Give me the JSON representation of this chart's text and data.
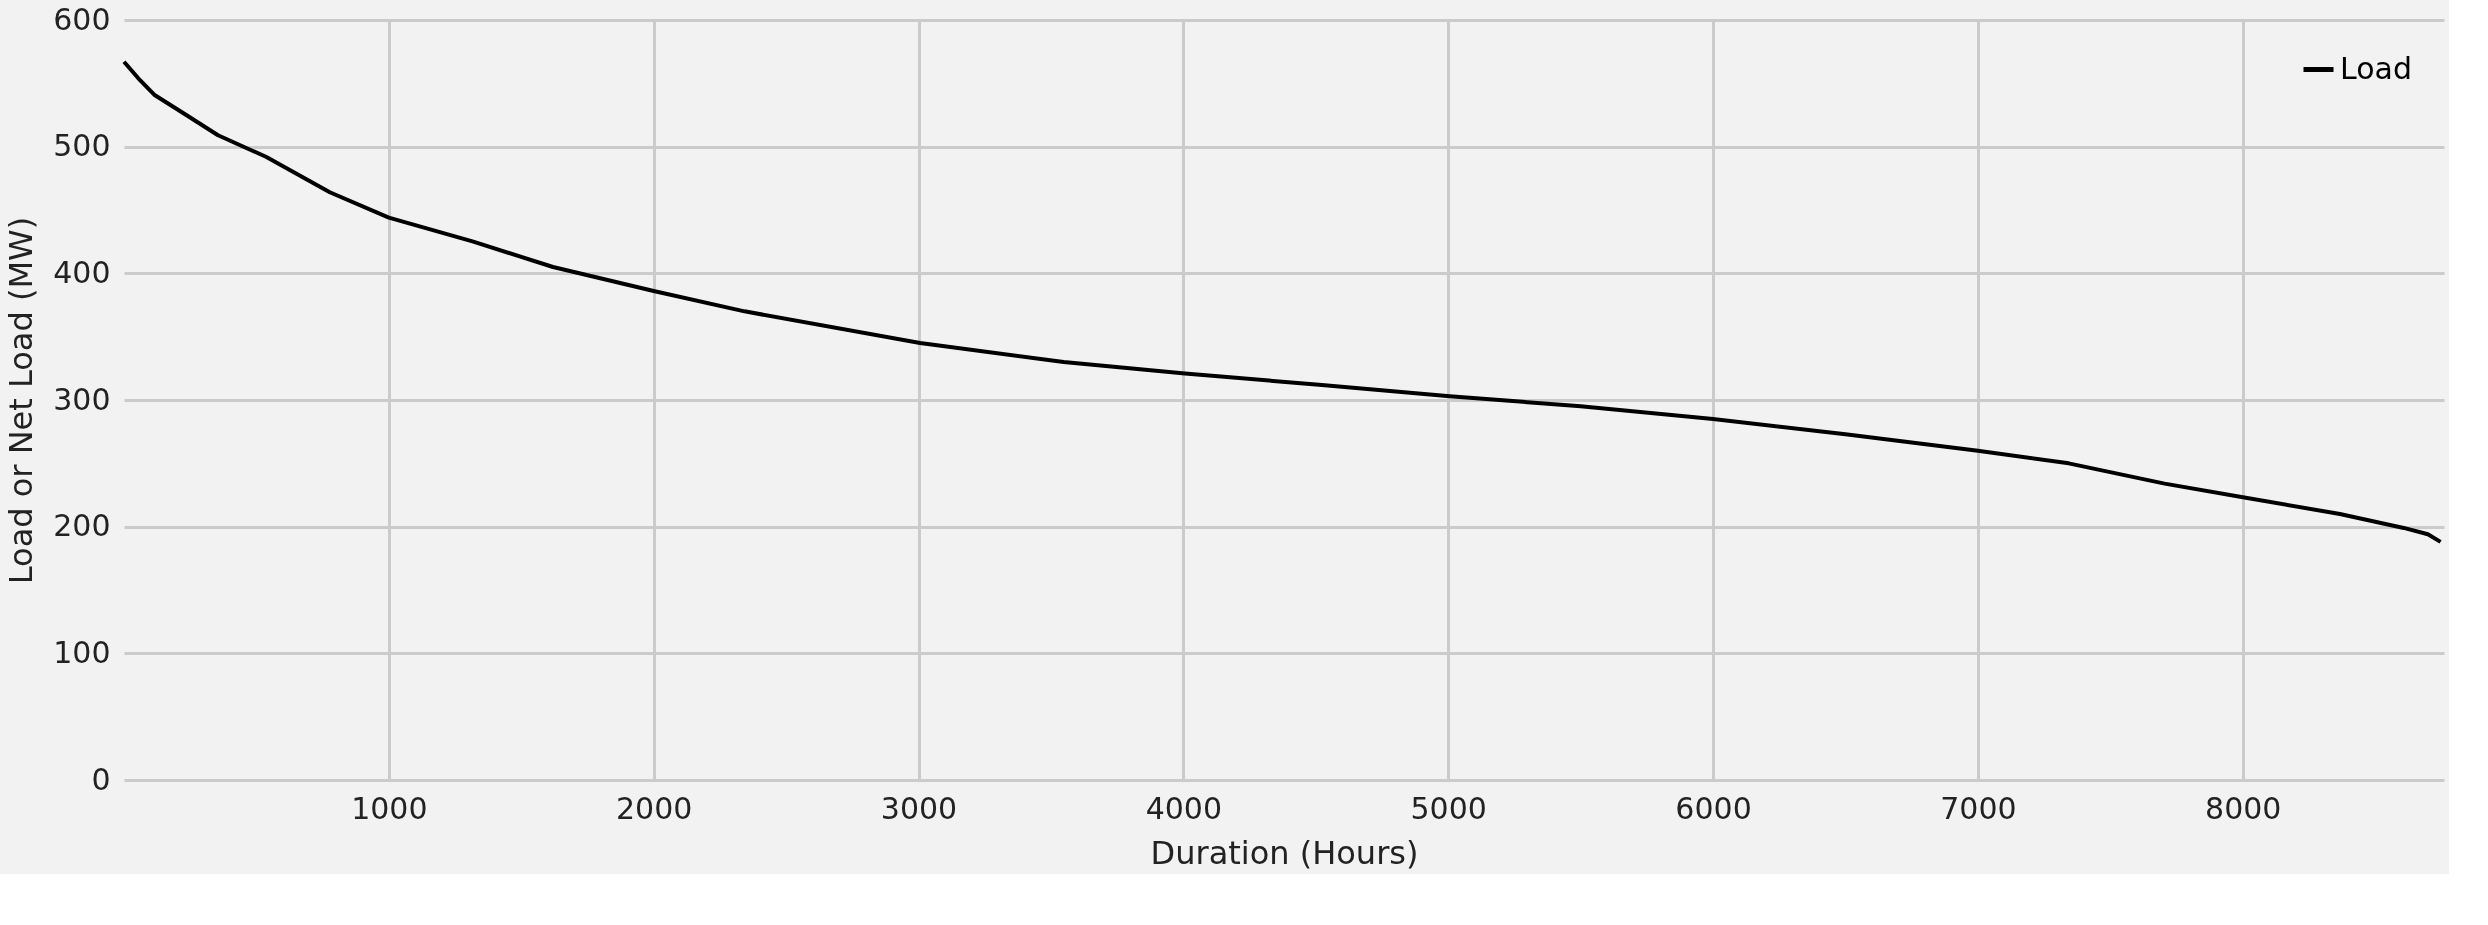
{
  "chart_data": {
    "type": "line",
    "xlabel": "Duration (Hours)",
    "ylabel": "Load or Net Load (MW)",
    "xlim": [
      0,
      8760
    ],
    "xticks": [
      1000,
      2000,
      3000,
      4000,
      5000,
      6000,
      7000,
      8000
    ],
    "ylim": [
      0,
      600
    ],
    "yticks": [
      0,
      100,
      200,
      300,
      400,
      500,
      600
    ],
    "grid": true,
    "legend": "top right",
    "line_style": "solid",
    "marker": "none",
    "series": [
      {
        "name": "Load",
        "color": "#000000",
        "x": [
          0,
          54,
          114,
          235,
          355,
          536,
          777,
          1000,
          1319,
          1620,
          2000,
          2343,
          3006,
          3548,
          4006,
          4512,
          5006,
          5500,
          6000,
          6500,
          7000,
          7343,
          7705,
          8006,
          8367,
          8608,
          8699,
          8747
        ],
        "values": [
          567,
          554,
          541,
          525,
          509,
          492,
          464,
          444,
          425,
          405,
          386,
          370,
          345,
          330,
          321,
          312,
          303,
          295,
          285,
          273,
          260,
          250,
          234,
          223,
          210,
          199,
          194,
          188
        ]
      }
    ]
  }
}
